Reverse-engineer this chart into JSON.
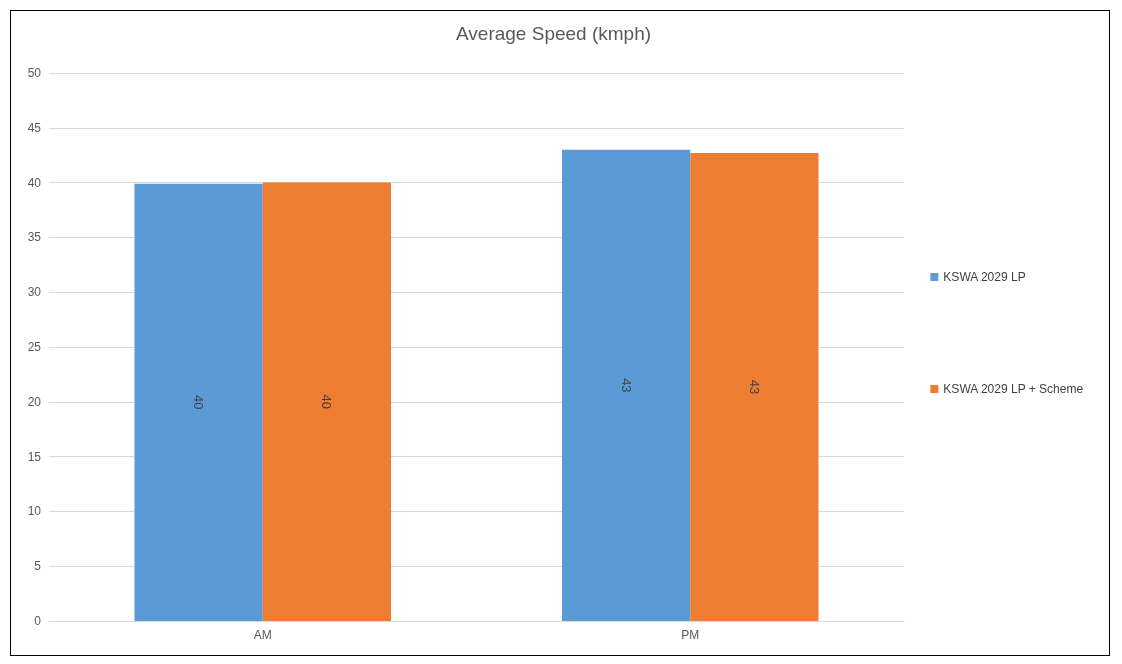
{
  "chart_data": {
    "type": "bar",
    "title": "Average Speed (kmph)",
    "categories": [
      "AM",
      "PM"
    ],
    "series": [
      {
        "name": "KSWA 2029 LP",
        "color": "#5b9bd5",
        "values": [
          39.9,
          43
        ],
        "value_labels": [
          "40",
          "43"
        ]
      },
      {
        "name": "KSWA 2029 LP + Scheme",
        "color": "#ed7d31",
        "values": [
          40,
          42.7
        ],
        "value_labels": [
          "40",
          "43"
        ]
      }
    ],
    "ylim": [
      0,
      50
    ],
    "yticks": [
      0,
      5,
      10,
      15,
      20,
      25,
      30,
      35,
      40,
      45,
      50
    ],
    "grid": "y",
    "legend": "right"
  }
}
